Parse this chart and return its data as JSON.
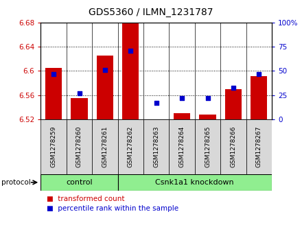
{
  "title": "GDS5360 / ILMN_1231787",
  "samples": [
    "GSM1278259",
    "GSM1278260",
    "GSM1278261",
    "GSM1278262",
    "GSM1278263",
    "GSM1278264",
    "GSM1278265",
    "GSM1278266",
    "GSM1278267"
  ],
  "transformed_counts": [
    6.605,
    6.555,
    6.625,
    6.678,
    6.519,
    6.53,
    6.528,
    6.57,
    6.592
  ],
  "percentile_ranks": [
    47,
    27,
    51,
    71,
    17,
    22,
    22,
    33,
    47
  ],
  "ylim_left": [
    6.52,
    6.68
  ],
  "ylim_right": [
    0,
    100
  ],
  "yticks_left": [
    6.52,
    6.56,
    6.6,
    6.64,
    6.68
  ],
  "yticks_right": [
    0,
    25,
    50,
    75,
    100
  ],
  "bar_color": "#cc0000",
  "dot_color": "#0000cc",
  "bar_bottom": 6.52,
  "control_count": 3,
  "knockdown_count": 6,
  "group_labels": [
    "control",
    "Csnk1a1 knockdown"
  ],
  "group_color": "#90ee90",
  "protocol_label": "protocol",
  "legend_bar_label": "transformed count",
  "legend_dot_label": "percentile rank within the sample",
  "title_fontsize": 10,
  "tick_fontsize": 7.5,
  "sample_fontsize": 6.5,
  "group_fontsize": 8,
  "legend_fontsize": 7.5,
  "bg_color": "#d8d8d8",
  "grid_color": "#000000"
}
